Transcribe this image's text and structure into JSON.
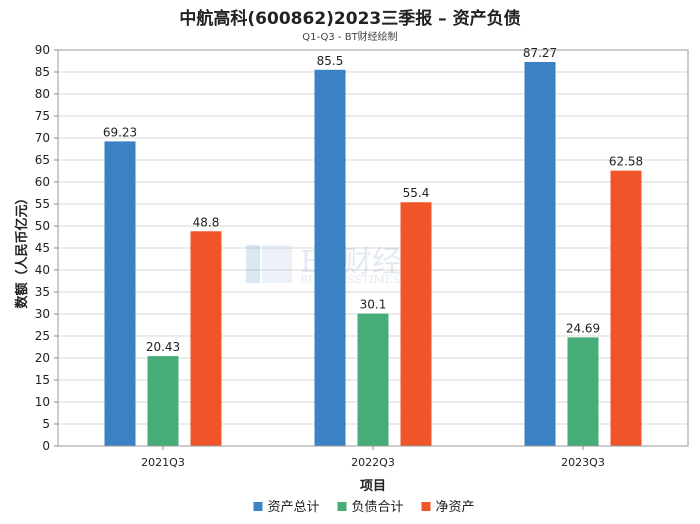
{
  "title": "中航高科(600862)2023三季报 – 资产负债",
  "subtitle": "Q1-Q3 - BT财经绘制",
  "watermark": {
    "main": "BT财经",
    "sub": "BUSINESSTIMES"
  },
  "chart_data": {
    "type": "bar",
    "categories": [
      "2021Q3",
      "2022Q3",
      "2023Q3"
    ],
    "series": [
      {
        "name": "资产总计",
        "color": "#3a82c4",
        "values": [
          69.23,
          85.5,
          87.27
        ]
      },
      {
        "name": "负债合计",
        "color": "#47ad78",
        "values": [
          20.43,
          30.1,
          24.69
        ]
      },
      {
        "name": "净资产",
        "color": "#f0552a",
        "values": [
          48.8,
          55.4,
          62.58
        ]
      }
    ],
    "xlabel": "项目",
    "ylabel": "数额（人民币亿元）",
    "ylim": [
      0,
      90
    ],
    "ytick_step": 5,
    "grid": true,
    "legend_position": "bottom"
  }
}
